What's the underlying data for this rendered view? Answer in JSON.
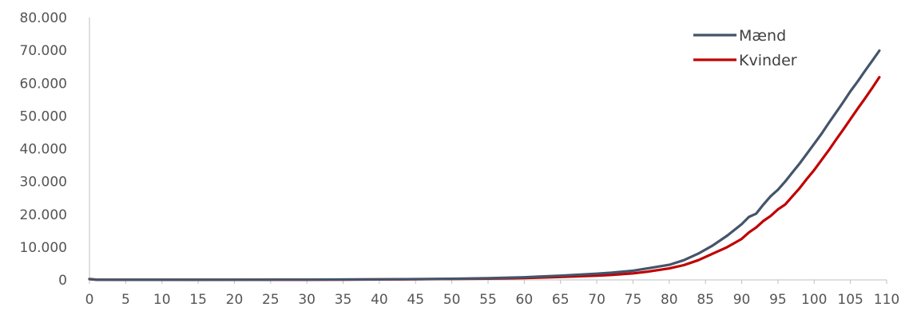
{
  "chart_data": {
    "type": "line",
    "title": "",
    "xlabel": "",
    "ylabel": "",
    "xlim": [
      0,
      110
    ],
    "ylim": [
      0,
      80000
    ],
    "x_ticks": [
      0,
      5,
      10,
      15,
      20,
      25,
      30,
      35,
      40,
      45,
      50,
      55,
      60,
      65,
      70,
      75,
      80,
      85,
      90,
      95,
      100,
      105,
      110
    ],
    "x_tick_labels": [
      "0",
      "5",
      "10",
      "15",
      "20",
      "25",
      "30",
      "35",
      "40",
      "45",
      "50",
      "55",
      "60",
      "65",
      "70",
      "75",
      "80",
      "85",
      "90",
      "95",
      "100",
      "105",
      "110"
    ],
    "y_ticks": [
      0,
      10000,
      20000,
      30000,
      40000,
      50000,
      60000,
      70000,
      80000
    ],
    "y_tick_labels": [
      "0",
      "10.000",
      "20.000",
      "30.000",
      "40.000",
      "50.000",
      "60.000",
      "70.000",
      "80.000"
    ],
    "grid": false,
    "legend_position": "top-right",
    "x": [
      0,
      1,
      5,
      10,
      15,
      20,
      25,
      30,
      35,
      40,
      45,
      50,
      55,
      60,
      62,
      65,
      70,
      72,
      75,
      77,
      80,
      82,
      84,
      86,
      88,
      90,
      91,
      92,
      93,
      94,
      95,
      96,
      97,
      98,
      99,
      100,
      101,
      102,
      103,
      104,
      105,
      106,
      107,
      108,
      109
    ],
    "series": [
      {
        "name": "Mænd",
        "color": "#44546a",
        "values": [
          300,
          50,
          30,
          30,
          40,
          60,
          70,
          80,
          120,
          180,
          250,
          350,
          500,
          800,
          1000,
          1300,
          1900,
          2200,
          2800,
          3500,
          4600,
          6000,
          8000,
          10500,
          13500,
          17000,
          19200,
          20200,
          23000,
          25500,
          27500,
          30000,
          32800,
          35500,
          38500,
          41500,
          44500,
          47800,
          51000,
          54200,
          57500,
          60500,
          63700,
          66800,
          69900
        ]
      },
      {
        "name": "Kvinder",
        "color": "#c00000",
        "values": [
          250,
          40,
          20,
          20,
          30,
          40,
          50,
          60,
          90,
          140,
          200,
          280,
          380,
          550,
          700,
          900,
          1300,
          1500,
          2000,
          2500,
          3500,
          4500,
          6000,
          8000,
          10000,
          12500,
          14500,
          16000,
          18000,
          19500,
          21500,
          23000,
          25500,
          28000,
          30800,
          33500,
          36500,
          39500,
          42700,
          45800,
          49000,
          52200,
          55300,
          58500,
          61800
        ]
      }
    ]
  }
}
